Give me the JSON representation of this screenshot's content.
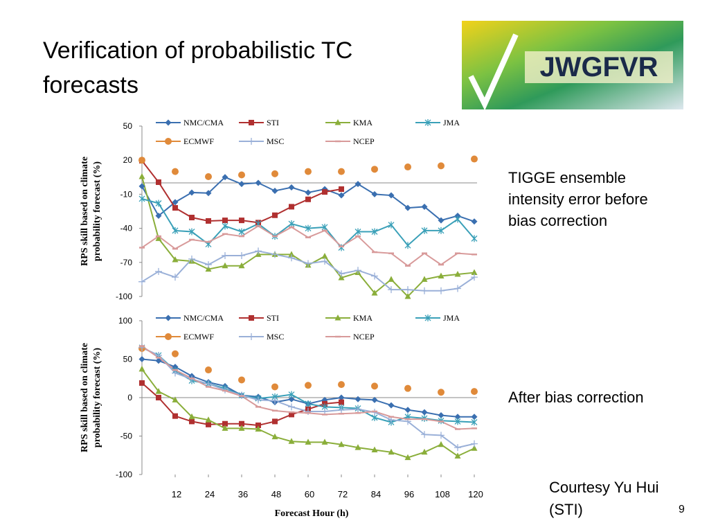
{
  "title": [
    "Verification of probabilistic TC",
    "forecasts"
  ],
  "logo": "JWGFVR",
  "notes": [
    [
      "TIGGE ensemble",
      "intensity error before",
      "bias correction"
    ],
    [
      "After bias correction"
    ]
  ],
  "credit": [
    "Courtesy Yu Hui",
    "(STI)"
  ],
  "page_number": "9",
  "chart_data": [
    {
      "type": "line",
      "y_label": [
        "RPS skill based on climate",
        "probability forecast (%)"
      ],
      "x": [
        0,
        6,
        12,
        18,
        24,
        30,
        36,
        42,
        48,
        54,
        60,
        66,
        72,
        78,
        84,
        90,
        96,
        102,
        108,
        114,
        120
      ],
      "xlim": [
        0,
        120
      ],
      "ylim": [
        -100,
        50
      ],
      "yticks": [
        -100,
        -70,
        -40,
        -10,
        20,
        50
      ],
      "series": [
        {
          "name": "NMC/CMA",
          "color": "#3a6fb0",
          "marker": "diamond",
          "line": true,
          "values": [
            -3,
            -29,
            -17,
            -8.5,
            -9,
            5,
            -1,
            0,
            -7,
            -4,
            -8.5,
            -5.5,
            -11,
            -1,
            -10,
            -11,
            -22,
            -21,
            -33,
            -29,
            -34
          ]
        },
        {
          "name": "STI",
          "color": "#b03030",
          "marker": "square",
          "line": true,
          "values": [
            19.5,
            0.6,
            -22,
            -30.5,
            -33.5,
            -33,
            -33,
            -35,
            -28.5,
            -21,
            -14.5,
            -8,
            -5.5,
            null,
            null,
            null,
            null,
            null,
            null,
            null,
            null
          ]
        },
        {
          "name": "KMA",
          "color": "#8aae3a",
          "marker": "triangle",
          "line": true,
          "values": [
            5.5,
            -49,
            -67.7,
            -69,
            -76,
            -73,
            -73,
            -63,
            -63,
            -63,
            -72.5,
            -64.6,
            -83.5,
            -79,
            -97,
            -85,
            -100,
            -85,
            -82,
            -80.5,
            -79
          ]
        },
        {
          "name": "JMA",
          "color": "#3aa0b8",
          "marker": "star",
          "line": true,
          "values": [
            -14,
            -18,
            -42,
            -43,
            -54,
            -38,
            -43,
            -36,
            -47,
            -36,
            -40,
            -39,
            -57,
            -43,
            -43,
            -37,
            -55,
            -42,
            -42,
            -32,
            -49
          ]
        },
        {
          "name": "ECMWF",
          "color": "#e08a3a",
          "marker": "circle",
          "line": false,
          "values": [
            20,
            null,
            10,
            null,
            5.5,
            null,
            7,
            null,
            8,
            null,
            10,
            null,
            10,
            null,
            12,
            null,
            14,
            null,
            15,
            null,
            21
          ]
        },
        {
          "name": "MSC",
          "color": "#9ab0d8",
          "marker": "plus",
          "line": true,
          "values": [
            -87,
            -78,
            -83,
            -67,
            -72,
            -64,
            -64,
            -60,
            -63,
            -66,
            -71,
            -69,
            -80,
            -77,
            -82,
            -94,
            -94,
            -95,
            -95,
            -93,
            -83
          ]
        },
        {
          "name": "NCEP",
          "color": "#d89a9a",
          "marker": "dash",
          "line": true,
          "values": [
            -57,
            -47,
            -58,
            -50,
            -52,
            -45,
            -47,
            -38,
            -47,
            -39,
            -48,
            -42,
            -56,
            -47,
            -61,
            -62,
            -73,
            -62,
            -72,
            -62,
            -63
          ]
        }
      ]
    },
    {
      "type": "line",
      "y_label": [
        "RPS skill based on climate",
        "probability forecast (%)"
      ],
      "x_label": "Forecast Hour (h)",
      "x": [
        0,
        6,
        12,
        18,
        24,
        30,
        36,
        42,
        48,
        54,
        60,
        66,
        72,
        78,
        84,
        90,
        96,
        102,
        108,
        114,
        120
      ],
      "xlim": [
        0,
        120
      ],
      "xticks": [
        12,
        24,
        36,
        48,
        60,
        72,
        84,
        96,
        108,
        120
      ],
      "ylim": [
        -100,
        100
      ],
      "yticks": [
        -100,
        -50,
        0,
        50,
        100
      ],
      "series": [
        {
          "name": "NMC/CMA",
          "color": "#3a6fb0",
          "marker": "diamond",
          "line": true,
          "values": [
            50,
            48,
            40,
            28,
            20,
            15,
            3,
            1,
            -6,
            -2,
            -8,
            -3,
            0,
            -2,
            -3,
            -10,
            -16,
            -19,
            -23,
            -25,
            -25
          ]
        },
        {
          "name": "STI",
          "color": "#b03030",
          "marker": "square",
          "line": true,
          "values": [
            19,
            0,
            -24,
            -31,
            -35,
            -34,
            -34,
            -36,
            -31,
            -22,
            -15,
            -8,
            -6,
            null,
            null,
            null,
            null,
            null,
            null,
            null,
            null
          ]
        },
        {
          "name": "KMA",
          "color": "#8aae3a",
          "marker": "triangle",
          "line": true,
          "values": [
            37,
            8,
            -3,
            -25,
            -29,
            -40,
            -40,
            -41,
            -51,
            -57,
            -58,
            -58,
            -61,
            -65,
            -68,
            -71,
            -78,
            -71,
            -61,
            -76,
            -66
          ]
        },
        {
          "name": "JMA",
          "color": "#3aa0b8",
          "marker": "star",
          "line": true,
          "values": [
            65,
            55,
            35,
            22,
            18,
            12,
            3,
            -1,
            1,
            4,
            -8,
            -12,
            -13,
            -14,
            -26,
            -32,
            -25,
            -27,
            -30,
            -31,
            -32
          ]
        },
        {
          "name": "ECMWF",
          "color": "#e08a3a",
          "marker": "circle",
          "line": false,
          "values": [
            64,
            null,
            57,
            null,
            36,
            null,
            23,
            null,
            14,
            null,
            16,
            null,
            17,
            null,
            15,
            null,
            12,
            null,
            7,
            null,
            8
          ]
        },
        {
          "name": "MSC",
          "color": "#9ab0d8",
          "marker": "plus",
          "line": true,
          "values": [
            65,
            55,
            32,
            24,
            18,
            10,
            3,
            -3,
            -4,
            -12,
            -18,
            -18,
            -16,
            -15,
            -19,
            -29,
            -31,
            -48,
            -49,
            -65,
            -60
          ]
        },
        {
          "name": "NCEP",
          "color": "#d89a9a",
          "marker": "dash",
          "line": true,
          "values": [
            67,
            52,
            36,
            25,
            14,
            9,
            2,
            -12,
            -17,
            -19,
            -20,
            -22,
            -21,
            -20,
            -18,
            -25,
            -28,
            -28,
            -31,
            -41,
            -40
          ]
        }
      ]
    }
  ]
}
